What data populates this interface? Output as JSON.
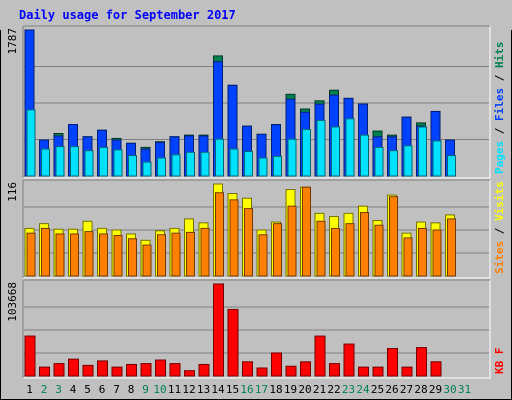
{
  "chart_data": {
    "type": "bar",
    "title": "Daily usage for September 2017",
    "categories": [
      "1",
      "2",
      "3",
      "4",
      "5",
      "6",
      "7",
      "8",
      "9",
      "10",
      "11",
      "12",
      "13",
      "14",
      "15",
      "16",
      "17",
      "18",
      "19",
      "20",
      "21",
      "22",
      "23",
      "24",
      "25",
      "26",
      "27",
      "28",
      "29",
      "30",
      "31"
    ],
    "weekend_days": [
      2,
      3,
      9,
      10,
      16,
      17,
      23,
      24,
      30,
      31
    ],
    "panels": [
      {
        "id": "hits_files_pages",
        "max_label": "1787",
        "ylim": [
          0,
          1787
        ],
        "legend": [
          "Pages",
          "Files",
          "Hits"
        ],
        "series": [
          {
            "name": "Hits",
            "color": "#007f4f",
            "values": [
              1787,
              440,
              520,
              630,
              480,
              560,
              460,
              400,
              350,
              420,
              480,
              500,
              500,
              1470,
              1110,
              610,
              510,
              630,
              1000,
              820,
              920,
              1050,
              950,
              880,
              550,
              500,
              720,
              650,
              790,
              440,
              0
            ]
          },
          {
            "name": "Files",
            "color": "#0042ff",
            "values": [
              1787,
              440,
              490,
              630,
              480,
              560,
              440,
              400,
              330,
              410,
              480,
              490,
              490,
              1400,
              1110,
              610,
              510,
              630,
              940,
              780,
              880,
              990,
              950,
              880,
              480,
              480,
              720,
              610,
              790,
              440,
              0
            ]
          },
          {
            "name": "Pages",
            "color": "#00e0ff",
            "values": [
              810,
              330,
              360,
              360,
              310,
              350,
              320,
              250,
              170,
              220,
              260,
              290,
              290,
              450,
              330,
              300,
              220,
              240,
              450,
              570,
              680,
              600,
              700,
              500,
              350,
              310,
              370,
              600,
              430,
              250,
              0
            ]
          }
        ]
      },
      {
        "id": "visits_sites",
        "max_label": "116",
        "ylim": [
          0,
          116
        ],
        "legend": [
          "Sites",
          "Visits"
        ],
        "series": [
          {
            "name": "Visits",
            "color": "#ffff00",
            "values": [
              60,
              66,
              59,
              59,
              69,
              60,
              58,
              53,
              45,
              57,
              60,
              72,
              67,
              116,
              104,
              98,
              58,
              68,
              109,
              112,
              79,
              75,
              79,
              88,
              70,
              102,
              54,
              68,
              67,
              77,
              0
            ]
          },
          {
            "name": "Sites",
            "color": "#ff8000",
            "values": [
              54,
              60,
              53,
              53,
              56,
              53,
              51,
              47,
              39,
              52,
              54,
              55,
              60,
              105,
              96,
              85,
              52,
              66,
              88,
              112,
              69,
              60,
              66,
              80,
              64,
              100,
              48,
              60,
              58,
              72,
              0
            ]
          }
        ]
      },
      {
        "id": "kbytes",
        "max_label": "103668",
        "ylim": [
          0,
          103668
        ],
        "legend": [
          "KB F"
        ],
        "series": [
          {
            "name": "KB F",
            "color": "#ff0000",
            "values": [
              45000,
              10000,
              14000,
              19000,
              12000,
              17000,
              10000,
              13000,
              14000,
              18000,
              14000,
              6000,
              13000,
              103668,
              75000,
              16000,
              9000,
              26000,
              11000,
              16000,
              45000,
              14000,
              36000,
              10000,
              10000,
              31000,
              10000,
              32000,
              16000,
              0,
              0
            ]
          }
        ]
      }
    ]
  }
}
